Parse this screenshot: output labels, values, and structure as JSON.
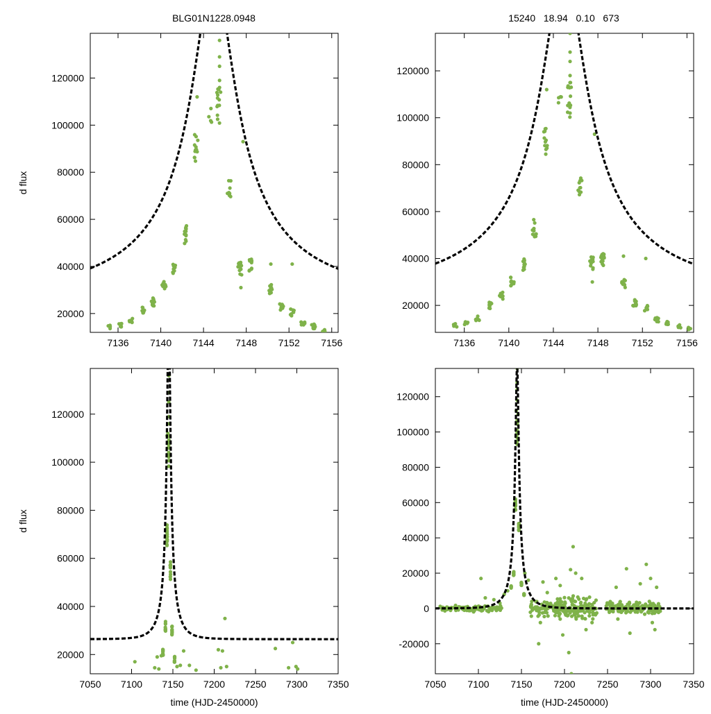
{
  "header": {
    "left_title": "BLG01N1228.0948",
    "right_title": "15240   18.94   0.10   673"
  },
  "colors": {
    "points": "#7fb24a",
    "model": "#000000",
    "frame": "#000000"
  },
  "chart_data": [
    {
      "id": "zoom-left",
      "type": "scatter",
      "title": "",
      "xlabel": "",
      "ylabel": "d flux",
      "xlim": [
        7133.4,
        7156.6
      ],
      "ylim": [
        12000,
        139000
      ],
      "xticks": [
        7136,
        7140,
        7144,
        7148,
        7152,
        7156
      ],
      "yticks": [
        20000,
        40000,
        60000,
        80000,
        100000,
        120000
      ],
      "model": {
        "t0": 7144.95,
        "u0": 0.1,
        "tE": 18.94,
        "fs": 15240,
        "fb": 11140,
        "style": "dashed"
      },
      "observations": {
        "clusters": [
          {
            "t": 7135.2,
            "v": 14000,
            "n": 4
          },
          {
            "t": 7136.2,
            "v": 15000,
            "n": 6
          },
          {
            "t": 7137.2,
            "v": 17000,
            "n": 8
          },
          {
            "t": 7138.3,
            "v": 21500,
            "n": 10
          },
          {
            "t": 7139.3,
            "v": 25000,
            "n": 10
          },
          {
            "t": 7140.3,
            "v": 31500,
            "n": 10
          },
          {
            "t": 7141.3,
            "v": 38500,
            "n": 10
          },
          {
            "t": 7142.3,
            "v": 53500,
            "n": 12
          },
          {
            "t": 7143.3,
            "v": 91000,
            "n": 12
          },
          {
            "t": 7144.6,
            "v": 104000,
            "n": 4
          },
          {
            "t": 7145.4,
            "v": 108000,
            "n": 12
          },
          {
            "t": 7146.4,
            "v": 72000,
            "n": 10
          },
          {
            "t": 7147.4,
            "v": 39000,
            "n": 12
          },
          {
            "t": 7148.4,
            "v": 40500,
            "n": 12
          },
          {
            "t": 7150.3,
            "v": 30500,
            "n": 12
          },
          {
            "t": 7151.3,
            "v": 22500,
            "n": 10
          },
          {
            "t": 7152.3,
            "v": 20500,
            "n": 8
          },
          {
            "t": 7153.3,
            "v": 16000,
            "n": 8
          },
          {
            "t": 7154.3,
            "v": 14500,
            "n": 8
          },
          {
            "t": 7155.3,
            "v": 13000,
            "n": 6
          }
        ],
        "points": [
          [
            7145.5,
            136000
          ],
          [
            7145.5,
            129000
          ],
          [
            7145.5,
            125000
          ],
          [
            7145.5,
            119000
          ],
          [
            7145.5,
            116000
          ],
          [
            7143.4,
            112000
          ],
          [
            7147.7,
            93000
          ],
          [
            7147.5,
            31000
          ],
          [
            7150.3,
            41000
          ],
          [
            7152.3,
            41000
          ],
          [
            7145.6,
            114000
          ]
        ]
      }
    },
    {
      "id": "zoom-right",
      "type": "scatter",
      "title": "",
      "xlabel": "",
      "ylabel": "",
      "xlim": [
        7133.4,
        7156.6
      ],
      "ylim": [
        8500,
        136000
      ],
      "xticks": [
        7136,
        7140,
        7144,
        7148,
        7152,
        7156
      ],
      "yticks": [
        20000,
        40000,
        60000,
        80000,
        100000,
        120000
      ],
      "model": {
        "t0": 7144.95,
        "u0": 0.1,
        "tE": 18.94,
        "fs": 15240,
        "fb": 9760,
        "style": "dashed"
      },
      "observations": {
        "clusters": [
          {
            "t": 7135.2,
            "v": 11500,
            "n": 4
          },
          {
            "t": 7136.2,
            "v": 12500,
            "n": 6
          },
          {
            "t": 7137.2,
            "v": 14500,
            "n": 8
          },
          {
            "t": 7138.3,
            "v": 20000,
            "n": 10
          },
          {
            "t": 7139.3,
            "v": 24000,
            "n": 10
          },
          {
            "t": 7140.3,
            "v": 30500,
            "n": 10
          },
          {
            "t": 7141.3,
            "v": 37500,
            "n": 10
          },
          {
            "t": 7142.3,
            "v": 53000,
            "n": 12
          },
          {
            "t": 7143.3,
            "v": 90500,
            "n": 12
          },
          {
            "t": 7144.6,
            "v": 104000,
            "n": 4
          },
          {
            "t": 7145.4,
            "v": 107500,
            "n": 12
          },
          {
            "t": 7146.4,
            "v": 71000,
            "n": 10
          },
          {
            "t": 7147.4,
            "v": 38000,
            "n": 12
          },
          {
            "t": 7148.4,
            "v": 39500,
            "n": 12
          },
          {
            "t": 7150.3,
            "v": 29500,
            "n": 12
          },
          {
            "t": 7151.3,
            "v": 21000,
            "n": 10
          },
          {
            "t": 7152.3,
            "v": 19000,
            "n": 8
          },
          {
            "t": 7153.3,
            "v": 14000,
            "n": 8
          },
          {
            "t": 7154.3,
            "v": 12500,
            "n": 8
          },
          {
            "t": 7155.3,
            "v": 11000,
            "n": 6
          },
          {
            "t": 7156.3,
            "v": 10000,
            "n": 4
          }
        ],
        "points": [
          [
            7145.5,
            136000
          ],
          [
            7145.5,
            128000
          ],
          [
            7145.5,
            124000
          ],
          [
            7145.5,
            118000
          ],
          [
            7145.5,
            115000
          ],
          [
            7143.4,
            112000
          ],
          [
            7147.7,
            93000
          ],
          [
            7147.5,
            30000
          ],
          [
            7150.3,
            41000
          ],
          [
            7152.3,
            40000
          ],
          [
            7145.6,
            113000
          ]
        ]
      }
    },
    {
      "id": "full-left",
      "type": "scatter",
      "title": "",
      "xlabel": "time (HJD-2450000)",
      "ylabel": "d flux",
      "xlim": [
        7050,
        7350
      ],
      "ylim": [
        12000,
        139000
      ],
      "xticks": [
        7050,
        7100,
        7150,
        7200,
        7250,
        7300,
        7350
      ],
      "yticks": [
        20000,
        40000,
        60000,
        80000,
        100000,
        120000
      ],
      "model": {
        "t0": 7144.95,
        "u0": 0.1,
        "tE": 18.94,
        "fs": 15240,
        "fb": 11140,
        "style": "dashed"
      },
      "observations": {
        "clusters": [
          {
            "t": 7138,
            "v": 21000,
            "n": 10
          },
          {
            "t": 7141,
            "v": 32000,
            "n": 10
          },
          {
            "t": 7143,
            "v": 70000,
            "n": 16
          },
          {
            "t": 7145,
            "v": 105000,
            "n": 14
          },
          {
            "t": 7147,
            "v": 55000,
            "n": 12
          },
          {
            "t": 7149,
            "v": 30000,
            "n": 12
          },
          {
            "t": 7152,
            "v": 18000,
            "n": 10
          }
        ],
        "points": [
          [
            7145,
            136000
          ],
          [
            7145,
            129000
          ],
          [
            7145,
            125000
          ],
          [
            7145,
            119000
          ],
          [
            7145.5,
            116000
          ],
          [
            7144,
            112000
          ],
          [
            7143,
            111000
          ],
          [
            7104,
            17000
          ],
          [
            7128,
            14500
          ],
          [
            7131,
            19000
          ],
          [
            7133,
            14000
          ],
          [
            7136,
            19500
          ],
          [
            7155,
            15000
          ],
          [
            7159,
            15500
          ],
          [
            7163,
            21500
          ],
          [
            7170,
            15500
          ],
          [
            7178,
            13500
          ],
          [
            7205,
            22000
          ],
          [
            7208,
            14500
          ],
          [
            7210,
            21500
          ],
          [
            7213,
            35000
          ],
          [
            7215,
            15000
          ],
          [
            7274,
            22500
          ],
          [
            7290,
            14500
          ],
          [
            7295,
            25000
          ],
          [
            7299,
            15000
          ],
          [
            7301,
            14000
          ]
        ]
      }
    },
    {
      "id": "full-right",
      "type": "scatter",
      "title": "",
      "xlabel": "time (HJD-2450000)",
      "ylabel": "",
      "xlim": [
        7050,
        7350
      ],
      "ylim": [
        -37000,
        136000
      ],
      "xticks": [
        7050,
        7100,
        7150,
        7200,
        7250,
        7300,
        7350
      ],
      "yticks": [
        -20000,
        0,
        20000,
        40000,
        60000,
        80000,
        100000,
        120000
      ],
      "model": {
        "t0": 7144.95,
        "u0": 0.1,
        "tE": 18.94,
        "fs": 15240,
        "fb": -15240,
        "style": "dashed"
      },
      "observations": {
        "baseline_segments": [
          {
            "t0": 7055,
            "t1": 7128,
            "spread": 1500,
            "n": 110
          },
          {
            "t0": 7158,
            "t1": 7184,
            "spread": 4000,
            "n": 50
          },
          {
            "t0": 7186,
            "t1": 7238,
            "spread": 5500,
            "n": 160
          },
          {
            "t0": 7248,
            "t1": 7312,
            "spread": 3500,
            "n": 150
          }
        ],
        "clusters": [
          {
            "t": 7138,
            "v": 12000,
            "n": 10
          },
          {
            "t": 7141,
            "v": 20000,
            "n": 10
          },
          {
            "t": 7143,
            "v": 60000,
            "n": 16
          },
          {
            "t": 7145,
            "v": 100000,
            "n": 14
          },
          {
            "t": 7147,
            "v": 45000,
            "n": 12
          },
          {
            "t": 7150,
            "v": 14000,
            "n": 12
          },
          {
            "t": 7153,
            "v": 8000,
            "n": 10
          }
        ],
        "points": [
          [
            7145,
            136000
          ],
          [
            7145,
            128000
          ],
          [
            7145,
            124000
          ],
          [
            7145,
            118000
          ],
          [
            7144,
            112000
          ],
          [
            7146,
            110000
          ],
          [
            7103,
            17000
          ],
          [
            7108,
            6000
          ],
          [
            7118,
            5000
          ],
          [
            7125,
            3000
          ],
          [
            7130,
            8000
          ],
          [
            7134,
            10000
          ],
          [
            7154,
            20000
          ],
          [
            7158,
            16000
          ],
          [
            7162,
            4000
          ],
          [
            7170,
            -20000
          ],
          [
            7172,
            -8000
          ],
          [
            7175,
            15000
          ],
          [
            7180,
            9000
          ],
          [
            7190,
            17000
          ],
          [
            7195,
            13000
          ],
          [
            7207,
            22000
          ],
          [
            7210,
            35000
          ],
          [
            7213,
            20000
          ],
          [
            7205,
            -25000
          ],
          [
            7208,
            -37000
          ],
          [
            7220,
            17000
          ],
          [
            7225,
            -12000
          ],
          [
            7232,
            -8000
          ],
          [
            7262,
            -6000
          ],
          [
            7272,
            22500
          ],
          [
            7276,
            -14000
          ],
          [
            7288,
            14000
          ],
          [
            7295,
            25000
          ],
          [
            7300,
            17000
          ],
          [
            7302,
            -8000
          ],
          [
            7305,
            -12000
          ],
          [
            7307,
            12000
          ],
          [
            7260,
            12000
          ],
          [
            7198,
            -15000
          ]
        ]
      }
    }
  ]
}
